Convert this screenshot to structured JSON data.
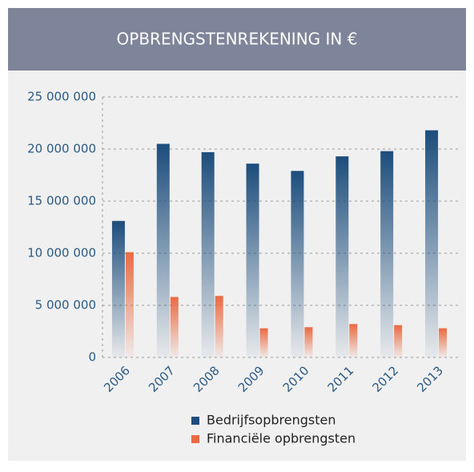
{
  "chart_data": {
    "type": "bar",
    "title": "OPBRENGSTENREKENING IN €",
    "categories": [
      "2006",
      "2007",
      "2008",
      "2009",
      "2010",
      "2011",
      "2012",
      "2013"
    ],
    "series": [
      {
        "name": "Bedrijfsopbrengsten",
        "color": "#1c4d7c",
        "values": [
          13100000,
          20500000,
          19700000,
          18600000,
          17900000,
          19300000,
          19800000,
          21800000
        ]
      },
      {
        "name": "Financiële opbrengsten",
        "color": "#ea6a42",
        "values": [
          10100000,
          5800000,
          5900000,
          2800000,
          2900000,
          3200000,
          3100000,
          2800000
        ]
      }
    ],
    "ylim": [
      0,
      25000000
    ],
    "yticks": [
      {
        "value": 0,
        "label": "0"
      },
      {
        "value": 5000000,
        "label": "5 000 000"
      },
      {
        "value": 10000000,
        "label": "10 000 000"
      },
      {
        "value": 15000000,
        "label": "15 000 000"
      },
      {
        "value": 20000000,
        "label": "20 000 000"
      },
      {
        "value": 25000000,
        "label": "25 000 000"
      }
    ],
    "grid": true
  }
}
